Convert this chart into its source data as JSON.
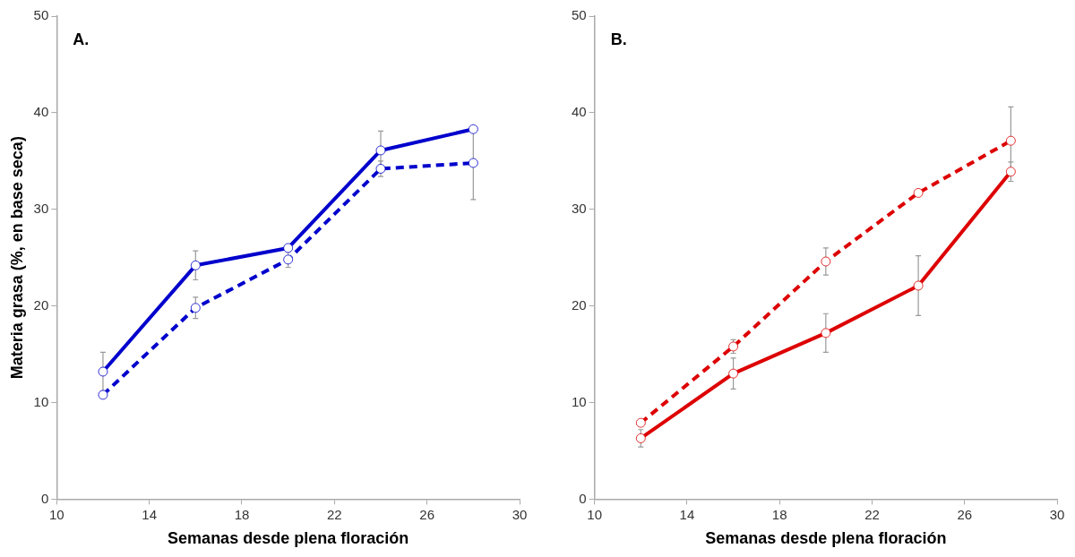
{
  "chart_data": [
    {
      "type": "line",
      "title": "A.",
      "xlabel": "Semanas desde plena floración",
      "ylabel": "Materia grasa (%, en base seca)",
      "x": [
        12,
        16,
        20,
        24,
        28
      ],
      "xlim": [
        10,
        30
      ],
      "xticks": [
        10,
        14,
        18,
        22,
        26,
        30
      ],
      "ylim": [
        0,
        50
      ],
      "yticks": [
        0,
        10,
        20,
        30,
        40,
        50
      ],
      "grid": false,
      "legend": false,
      "marker": "circle",
      "series": [
        {
          "color": "#0000cc",
          "line_style": "solid",
          "values": [
            13.2,
            24.2,
            26,
            36.1,
            38.3
          ],
          "errors": [
            2,
            1.5,
            null,
            2,
            null
          ]
        },
        {
          "color": "#0000cc",
          "line_style": "dashed",
          "values": [
            10.8,
            19.8,
            24.8,
            34.2,
            34.8
          ],
          "errors": [
            null,
            1.1,
            0.8,
            0.8,
            3.8
          ]
        }
      ]
    },
    {
      "type": "line",
      "title": "B.",
      "xlabel": "Semanas desde plena floración",
      "x": [
        12,
        16,
        20,
        24,
        28
      ],
      "xlim": [
        10,
        30
      ],
      "xticks": [
        10,
        14,
        18,
        22,
        26,
        30
      ],
      "ylim": [
        0,
        50
      ],
      "yticks": [
        0,
        10,
        20,
        30,
        40,
        50
      ],
      "grid": false,
      "legend": false,
      "marker": "circle",
      "series": [
        {
          "color": "#dd0000",
          "line_style": "solid",
          "values": [
            6.3,
            13,
            17.2,
            22.1,
            33.9
          ],
          "errors": [
            0.9,
            1.6,
            2,
            3.1,
            1
          ]
        },
        {
          "color": "#dd0000",
          "line_style": "dashed",
          "values": [
            7.9,
            15.8,
            24.6,
            31.7,
            37.1
          ],
          "errors": [
            null,
            0.7,
            1.4,
            null,
            3.5
          ]
        }
      ]
    }
  ]
}
